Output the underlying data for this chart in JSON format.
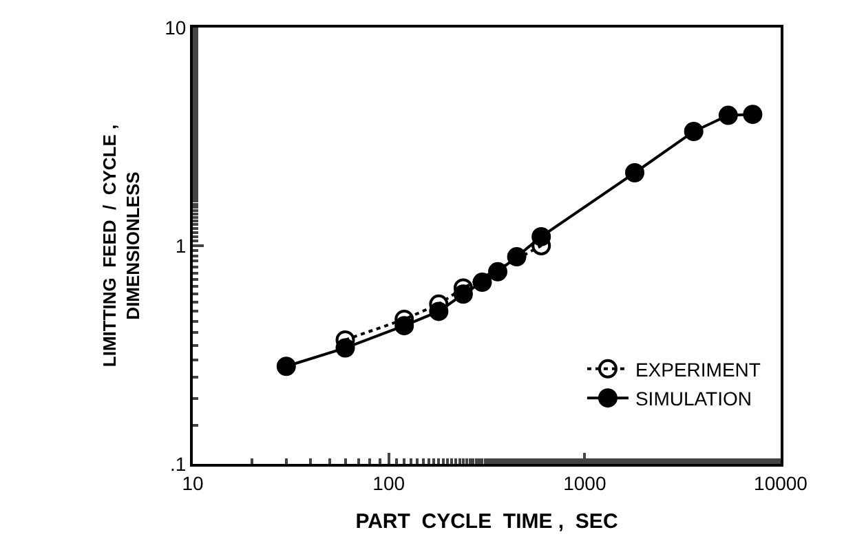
{
  "chart_data": {
    "type": "line",
    "xlabel": "PART  CYCLE  TIME ,  SEC",
    "ylabel": "LIMITTING  FEED  /  CYCLE ,\nDIMENSIONLESS",
    "log": "xy",
    "xlim": [
      10,
      10000
    ],
    "xticks": [
      10,
      100,
      1000,
      10000
    ],
    "ylim": [
      0.1,
      10
    ],
    "yticks": [
      {
        "value": 0.1,
        "label": ".1"
      },
      1,
      10
    ],
    "legend": "bottom right",
    "series": [
      {
        "name": "EXPERIMENT",
        "color": "#000000",
        "marker": "circle-open",
        "line_style": "dotted",
        "x": [
          60,
          120,
          180,
          240,
          600
        ],
        "values": [
          0.37,
          0.46,
          0.54,
          0.64,
          1.0
        ]
      },
      {
        "name": "SIMULATION",
        "color": "#000000",
        "marker": "circle",
        "line_style": "solid",
        "x": [
          30,
          60,
          120,
          180,
          240,
          300,
          360,
          450,
          600,
          1800,
          3600,
          5400,
          7200
        ],
        "values": [
          0.28,
          0.34,
          0.43,
          0.5,
          0.6,
          0.68,
          0.76,
          0.89,
          1.1,
          2.16,
          3.34,
          3.96,
          4.0
        ]
      }
    ]
  }
}
